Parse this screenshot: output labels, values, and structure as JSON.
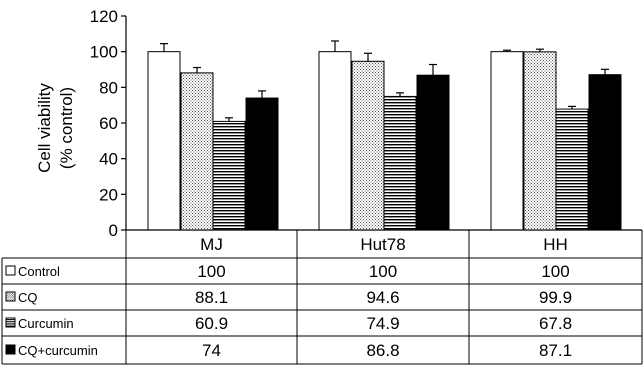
{
  "chart_data": {
    "type": "bar",
    "ylabel_line1": "Cell viability",
    "ylabel_line2": "(% control)",
    "ylim": [
      0,
      120
    ],
    "yticks": [
      0,
      20,
      40,
      60,
      80,
      100,
      120
    ],
    "categories": [
      "MJ",
      "Hut78",
      "HH"
    ],
    "series": [
      {
        "name": "Control",
        "pattern": "white",
        "values": [
          100,
          100,
          100
        ],
        "errors": [
          4.5,
          6,
          0.8
        ],
        "table_labels": [
          "100",
          "100",
          "100"
        ]
      },
      {
        "name": "CQ",
        "pattern": "dotted",
        "values": [
          88.1,
          94.6,
          99.9
        ],
        "errors": [
          3,
          4.5,
          1.5
        ],
        "table_labels": [
          "88.1",
          "94.6",
          "99.9"
        ]
      },
      {
        "name": "Curcumin",
        "pattern": "striped",
        "values": [
          60.9,
          74.9,
          67.8
        ],
        "errors": [
          2,
          2,
          1.5
        ],
        "table_labels": [
          "60.9",
          "74.9",
          "67.8"
        ]
      },
      {
        "name": "CQ+curcumin",
        "pattern": "black",
        "values": [
          74,
          86.8,
          87.1
        ],
        "errors": [
          4,
          6,
          3
        ],
        "table_labels": [
          "74",
          "86.8",
          "87.1"
        ]
      }
    ],
    "colors": {
      "bar_stroke": "#000000",
      "black_fill": "#000000",
      "white_fill": "#ffffff"
    },
    "legend": "table-rows-left",
    "grid": false
  }
}
